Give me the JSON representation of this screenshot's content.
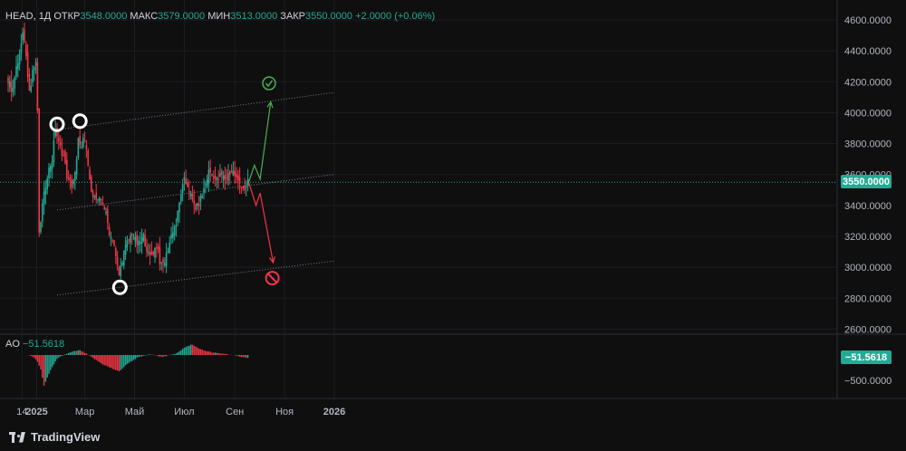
{
  "header": {
    "symbol": "HEAD",
    "timeframe": "1Д",
    "open_label": "ОТКР",
    "open_value": "3548.0000",
    "high_label": "МАКС",
    "high_value": "3579.0000",
    "low_label": "МИН",
    "low_value": "3513.0000",
    "close_label": "ЗАКР",
    "close_value": "3550.0000",
    "change_value": "+2.0000 (+0.06%)"
  },
  "ao_header": {
    "label": "AO",
    "value": "−51.5618"
  },
  "price_tag": "3550.0000",
  "ao_tag": "−51.5618",
  "ao_level_label": "−500.0000",
  "brand": "TradingView",
  "colors": {
    "background": "#0f0f10",
    "up": "#22ab94",
    "down": "#f23645",
    "grid": "#1c1d22",
    "axis_text": "#b2b5be",
    "bull_arrow": "#4caf50",
    "bear_arrow": "#f23645"
  },
  "chart_data": {
    "type": "candlestick",
    "y_ticks": [
      2600,
      2800,
      3000,
      3200,
      3400,
      3600,
      3800,
      4000,
      4200,
      4400,
      4600
    ],
    "y_tick_labels": [
      "2600.0000",
      "2800.0000",
      "3000.0000",
      "3200.0000",
      "3400.0000",
      "3600.0000",
      "3800.0000",
      "4000.0000",
      "4200.0000",
      "4400.0000",
      "4600.0000"
    ],
    "ylim": [
      2545,
      4650
    ],
    "x_tick_labels": [
      "14",
      "2025",
      "Мар",
      "Май",
      "Июл",
      "Сен",
      "Ноя",
      "2026"
    ],
    "x_tick_dates": [
      "2024-12-14",
      "2025-01-01",
      "2025-03-01",
      "2025-05-01",
      "2025-07-01",
      "2025-09-01",
      "2025-11-01",
      "2026-01-01"
    ],
    "last_price": 3550,
    "price_path": [
      [
        "2024-11-27",
        4200
      ],
      [
        "2024-12-02",
        4150
      ],
      [
        "2024-12-07",
        4280
      ],
      [
        "2024-12-12",
        4400
      ],
      [
        "2024-12-16",
        4530
      ],
      [
        "2024-12-20",
        4300
      ],
      [
        "2024-12-24",
        4120
      ],
      [
        "2024-12-27",
        4280
      ],
      [
        "2024-12-31",
        4310
      ],
      [
        "2025-01-02",
        4020
      ],
      [
        "2025-01-04",
        3200
      ],
      [
        "2025-01-08",
        3400
      ],
      [
        "2025-01-14",
        3600
      ],
      [
        "2025-01-20",
        3700
      ],
      [
        "2025-01-24",
        3900
      ],
      [
        "2025-01-28",
        3800
      ],
      [
        "2025-02-03",
        3720
      ],
      [
        "2025-02-08",
        3560
      ],
      [
        "2025-02-13",
        3530
      ],
      [
        "2025-02-18",
        3620
      ],
      [
        "2025-02-22",
        3880
      ],
      [
        "2025-02-24",
        3740
      ],
      [
        "2025-02-27",
        3820
      ],
      [
        "2025-03-03",
        3760
      ],
      [
        "2025-03-07",
        3550
      ],
      [
        "2025-03-12",
        3460
      ],
      [
        "2025-03-17",
        3420
      ],
      [
        "2025-03-22",
        3440
      ],
      [
        "2025-03-27",
        3340
      ],
      [
        "2025-04-01",
        3200
      ],
      [
        "2025-04-05",
        3180
      ],
      [
        "2025-04-09",
        3020
      ],
      [
        "2025-04-12",
        2950
      ],
      [
        "2025-04-17",
        3080
      ],
      [
        "2025-04-22",
        3160
      ],
      [
        "2025-04-28",
        3220
      ],
      [
        "2025-05-05",
        3140
      ],
      [
        "2025-05-12",
        3200
      ],
      [
        "2025-05-19",
        3060
      ],
      [
        "2025-05-24",
        3100
      ],
      [
        "2025-05-29",
        3150
      ],
      [
        "2025-06-02",
        3000
      ],
      [
        "2025-06-07",
        3040
      ],
      [
        "2025-06-12",
        3140
      ],
      [
        "2025-06-16",
        3230
      ],
      [
        "2025-06-21",
        3280
      ],
      [
        "2025-06-27",
        3480
      ],
      [
        "2025-07-01",
        3560
      ],
      [
        "2025-07-06",
        3520
      ],
      [
        "2025-07-11",
        3420
      ],
      [
        "2025-07-16",
        3380
      ],
      [
        "2025-07-21",
        3440
      ],
      [
        "2025-07-26",
        3520
      ],
      [
        "2025-07-31",
        3620
      ],
      [
        "2025-08-05",
        3600
      ],
      [
        "2025-08-10",
        3560
      ],
      [
        "2025-08-15",
        3600
      ],
      [
        "2025-08-20",
        3570
      ],
      [
        "2025-08-25",
        3610
      ],
      [
        "2025-08-30",
        3620
      ],
      [
        "2025-09-04",
        3560
      ],
      [
        "2025-09-09",
        3530
      ],
      [
        "2025-09-14",
        3500
      ],
      [
        "2025-09-18",
        3550
      ]
    ],
    "channels": [
      {
        "name": "upper-channel-line",
        "from": [
          "2025-01-26",
          3890
        ],
        "to": [
          "2025-12-31",
          4130
        ]
      },
      {
        "name": "middle-channel-line",
        "from": [
          "2025-01-26",
          3370
        ],
        "to": [
          "2025-12-31",
          3600
        ]
      },
      {
        "name": "lower-channel-line",
        "from": [
          "2025-01-26",
          2820
        ],
        "to": [
          "2025-12-31",
          3040
        ]
      }
    ],
    "circle_markers": [
      {
        "name": "swing-high-marker-1",
        "date": "2025-01-26",
        "price": 3925
      },
      {
        "name": "swing-high-marker-2",
        "date": "2025-02-23",
        "price": 3945
      },
      {
        "name": "swing-low-marker",
        "date": "2025-04-13",
        "price": 2870
      }
    ],
    "bull_scenario": [
      [
        "2025-09-18",
        3550
      ],
      [
        "2025-09-25",
        3660
      ],
      [
        "2025-10-02",
        3570
      ],
      [
        "2025-10-15",
        4070
      ]
    ],
    "bear_scenario": [
      [
        "2025-09-18",
        3550
      ],
      [
        "2025-09-27",
        3400
      ],
      [
        "2025-10-02",
        3480
      ],
      [
        "2025-10-18",
        3030
      ]
    ],
    "bull_target_icon": {
      "date": "2025-10-13",
      "price": 4190
    },
    "bear_target_icon": {
      "date": "2025-10-17",
      "price": 2930
    },
    "ao": {
      "type": "histogram",
      "level": -500,
      "last_value": -51.5618,
      "path": [
        [
          "2024-12-21",
          0
        ],
        [
          "2024-12-26",
          -20
        ],
        [
          "2025-01-01",
          -80
        ],
        [
          "2025-01-06",
          -250
        ],
        [
          "2025-01-10",
          -520
        ],
        [
          "2025-01-14",
          -380
        ],
        [
          "2025-01-20",
          -200
        ],
        [
          "2025-01-27",
          -50
        ],
        [
          "2025-02-05",
          10
        ],
        [
          "2025-02-15",
          60
        ],
        [
          "2025-02-23",
          80
        ],
        [
          "2025-03-03",
          20
        ],
        [
          "2025-03-12",
          -60
        ],
        [
          "2025-03-22",
          -150
        ],
        [
          "2025-04-02",
          -220
        ],
        [
          "2025-04-12",
          -280
        ],
        [
          "2025-04-22",
          -150
        ],
        [
          "2025-05-05",
          -40
        ],
        [
          "2025-05-20",
          10
        ],
        [
          "2025-06-05",
          -30
        ],
        [
          "2025-06-20",
          20
        ],
        [
          "2025-07-01",
          120
        ],
        [
          "2025-07-10",
          180
        ],
        [
          "2025-07-22",
          90
        ],
        [
          "2025-08-05",
          40
        ],
        [
          "2025-08-20",
          20
        ],
        [
          "2025-09-05",
          -20
        ],
        [
          "2025-09-18",
          -51.5618
        ]
      ]
    }
  }
}
